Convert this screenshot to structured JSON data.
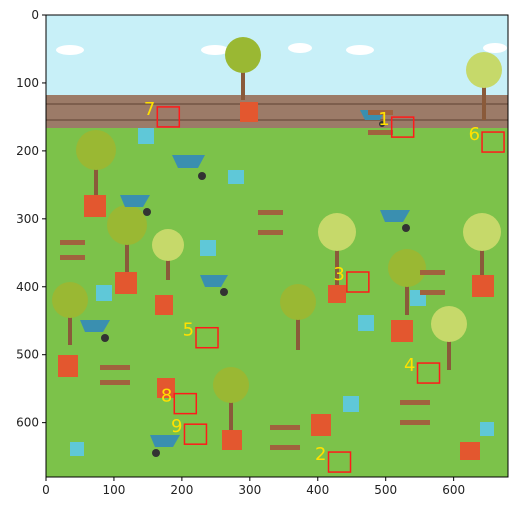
{
  "x_ticks": [
    {
      "value": 0,
      "label": "0"
    },
    {
      "value": 100,
      "label": "100"
    },
    {
      "value": 200,
      "label": "200"
    },
    {
      "value": 300,
      "label": "300"
    },
    {
      "value": 400,
      "label": "400"
    },
    {
      "value": 500,
      "label": "500"
    },
    {
      "value": 600,
      "label": "600"
    }
  ],
  "y_ticks": [
    {
      "value": 0,
      "label": "0"
    },
    {
      "value": 100,
      "label": "100"
    },
    {
      "value": 200,
      "label": "200"
    },
    {
      "value": 300,
      "label": "300"
    },
    {
      "value": 400,
      "label": "400"
    },
    {
      "value": 500,
      "label": "500"
    },
    {
      "value": 600,
      "label": "600"
    }
  ],
  "image_extent": {
    "width": 680,
    "height": 680
  },
  "markers": [
    {
      "label": "1",
      "x": 525,
      "y": 165
    },
    {
      "label": "2",
      "x": 432,
      "y": 658
    },
    {
      "label": "3",
      "x": 459,
      "y": 393
    },
    {
      "label": "4",
      "x": 563,
      "y": 527
    },
    {
      "label": "5",
      "x": 237,
      "y": 475
    },
    {
      "label": "6",
      "x": 658,
      "y": 187
    },
    {
      "label": "7",
      "x": 180,
      "y": 150
    },
    {
      "label": "8",
      "x": 205,
      "y": 572
    },
    {
      "label": "9",
      "x": 220,
      "y": 617
    }
  ],
  "colors": {
    "marker_box": "#ff1a1a",
    "marker_text": "#ffe100",
    "sky": "#c8f0f8",
    "grass": "#7cc24a",
    "fence": "#9c7b68"
  },
  "scene_icons": [
    "garden-scene",
    "potted-plant",
    "wheelbarrow",
    "watering-can",
    "flower-pot",
    "tree"
  ]
}
